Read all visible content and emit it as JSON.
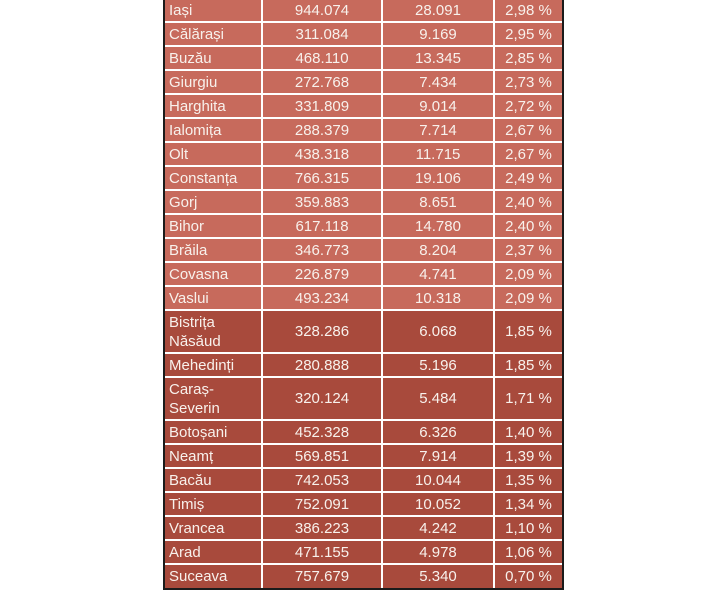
{
  "chart_data": {
    "type": "table",
    "title": "",
    "rows": [
      {
        "county": "Iași",
        "population": "944.074",
        "value": "28.091",
        "percent": "2,98 %",
        "shade": "light",
        "tall": false
      },
      {
        "county": "Călărași",
        "population": "311.084",
        "value": "9.169",
        "percent": "2,95 %",
        "shade": "light",
        "tall": false
      },
      {
        "county": "Buzău",
        "population": "468.110",
        "value": "13.345",
        "percent": "2,85 %",
        "shade": "light",
        "tall": false
      },
      {
        "county": "Giurgiu",
        "population": "272.768",
        "value": "7.434",
        "percent": "2,73 %",
        "shade": "light",
        "tall": false
      },
      {
        "county": "Harghita",
        "population": "331.809",
        "value": "9.014",
        "percent": "2,72 %",
        "shade": "light",
        "tall": false
      },
      {
        "county": "Ialomița",
        "population": "288.379",
        "value": "7.714",
        "percent": "2,67 %",
        "shade": "light",
        "tall": false
      },
      {
        "county": "Olt",
        "population": "438.318",
        "value": "11.715",
        "percent": "2,67 %",
        "shade": "light",
        "tall": false
      },
      {
        "county": "Constanța",
        "population": "766.315",
        "value": "19.106",
        "percent": "2,49 %",
        "shade": "light",
        "tall": false
      },
      {
        "county": "Gorj",
        "population": "359.883",
        "value": "8.651",
        "percent": "2,40 %",
        "shade": "light",
        "tall": false
      },
      {
        "county": "Bihor",
        "population": "617.118",
        "value": "14.780",
        "percent": "2,40 %",
        "shade": "light",
        "tall": false
      },
      {
        "county": "Brăila",
        "population": "346.773",
        "value": "8.204",
        "percent": "2,37 %",
        "shade": "light",
        "tall": false
      },
      {
        "county": "Covasna",
        "population": "226.879",
        "value": "4.741",
        "percent": "2,09 %",
        "shade": "light",
        "tall": false
      },
      {
        "county": "Vaslui",
        "population": "493.234",
        "value": "10.318",
        "percent": "2,09 %",
        "shade": "light",
        "tall": false
      },
      {
        "county": "Bistrița Năsăud",
        "population": "328.286",
        "value": "6.068",
        "percent": "1,85 %",
        "shade": "dark",
        "tall": true
      },
      {
        "county": "Mehedinți",
        "population": "280.888",
        "value": "5.196",
        "percent": "1,85 %",
        "shade": "dark",
        "tall": false
      },
      {
        "county": "Caraș-Severin",
        "population": "320.124",
        "value": "5.484",
        "percent": "1,71 %",
        "shade": "dark",
        "tall": true
      },
      {
        "county": "Botoșani",
        "population": "452.328",
        "value": "6.326",
        "percent": "1,40 %",
        "shade": "dark",
        "tall": false
      },
      {
        "county": "Neamț",
        "population": "569.851",
        "value": "7.914",
        "percent": "1,39 %",
        "shade": "dark",
        "tall": false
      },
      {
        "county": "Bacău",
        "population": "742.053",
        "value": "10.044",
        "percent": "1,35 %",
        "shade": "dark",
        "tall": false
      },
      {
        "county": "Timiș",
        "population": "752.091",
        "value": "10.052",
        "percent": "1,34 %",
        "shade": "dark",
        "tall": false
      },
      {
        "county": "Vrancea",
        "population": "386.223",
        "value": "4.242",
        "percent": "1,10 %",
        "shade": "dark",
        "tall": false
      },
      {
        "county": "Arad",
        "population": "471.155",
        "value": "4.978",
        "percent": "1,06 %",
        "shade": "dark",
        "tall": false
      },
      {
        "county": "Suceava",
        "population": "757.679",
        "value": "5.340",
        "percent": "0,70 %",
        "shade": "dark",
        "tall": false
      }
    ]
  },
  "colors": {
    "row_light": "#c76a5c",
    "row_dark": "#a84a3c",
    "gridline": "#ffffff",
    "frame": "#1b1b1b",
    "text": "#f8f1ec"
  }
}
